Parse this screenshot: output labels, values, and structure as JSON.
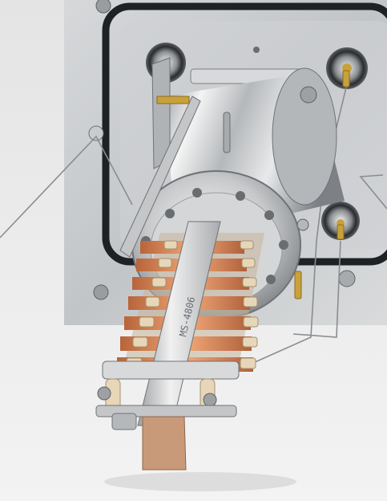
{
  "image": {
    "engraved_text": "MS-4806",
    "colors": {
      "background": "#ececec",
      "panel": "#c9cbcd",
      "steel_light": "#f2f2f2",
      "steel_mid": "#b9bcbf",
      "steel_dark": "#6f7276",
      "gasket": "#1f2224",
      "copper": "#d98a5a",
      "ceramic": "#e7d6b8",
      "gold": "#c9a13a"
    }
  }
}
